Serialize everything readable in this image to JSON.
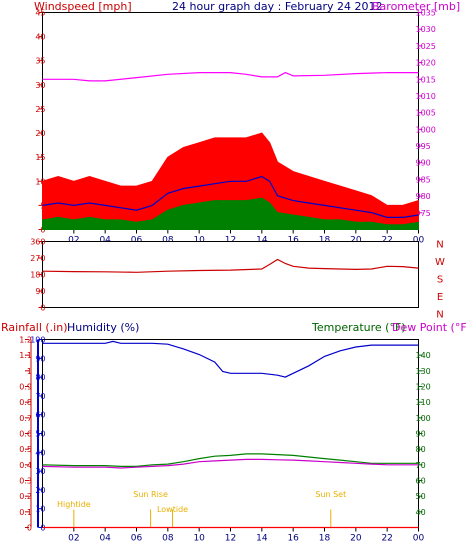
{
  "chart_data": [
    {
      "type": "line",
      "panel": "wind-barometer",
      "title": "24 hour graph day : February 24 2012",
      "ylabel_left": "Windspeed [mph]",
      "ylabel_right": "Barometer [mb]",
      "xlim": [
        0,
        24
      ],
      "x_ticks": [
        "02",
        "04",
        "06",
        "08",
        "10",
        "12",
        "14",
        "16",
        "18",
        "20",
        "22",
        "00"
      ],
      "ylim_left": [
        0,
        45
      ],
      "yticks_left": [
        "0",
        "5",
        "10",
        "15",
        "20",
        "25",
        "30",
        "35",
        "40",
        "45"
      ],
      "ylim_right": [
        970,
        1035
      ],
      "yticks_right": [
        "975",
        "980",
        "985",
        "990",
        "995",
        "1000",
        "1005",
        "1010",
        "1015",
        "1020",
        "1025",
        "1030",
        "1035"
      ],
      "grid": false,
      "series": [
        {
          "color": "#ff0000",
          "fill": true,
          "x": [
            0,
            1,
            2,
            3,
            4,
            5,
            6,
            7,
            8,
            9,
            10,
            11,
            12,
            13,
            14,
            14.5,
            15,
            16,
            17,
            18,
            19,
            20,
            21,
            22,
            23,
            24
          ],
          "values": [
            10,
            11,
            10,
            11,
            10,
            9,
            9,
            10,
            15,
            17,
            18,
            19,
            19,
            19,
            20,
            18,
            14,
            12,
            11,
            10,
            9,
            8,
            7,
            5,
            5,
            6
          ]
        },
        {
          "color": "#0000cc",
          "x": [
            0,
            1,
            2,
            3,
            4,
            5,
            6,
            7,
            8,
            9,
            10,
            11,
            12,
            13,
            14,
            14.5,
            15,
            16,
            17,
            18,
            19,
            20,
            21,
            22,
            23,
            24
          ],
          "values": [
            5,
            5.5,
            5,
            5.5,
            5,
            4.5,
            4,
            5,
            7.5,
            8.5,
            9,
            9.5,
            10,
            10,
            11,
            10,
            7,
            6,
            5.5,
            5,
            4.5,
            4,
            3.5,
            2.5,
            2.5,
            3
          ]
        },
        {
          "color": "#008000",
          "fill": true,
          "x": [
            0,
            1,
            2,
            3,
            4,
            5,
            6,
            7,
            8,
            9,
            10,
            11,
            12,
            13,
            14,
            14.5,
            15,
            16,
            17,
            18,
            19,
            20,
            21,
            22,
            23,
            24
          ],
          "values": [
            2,
            2.5,
            2,
            2.5,
            2,
            2,
            1.5,
            2,
            4,
            5,
            5.5,
            6,
            6,
            6,
            6.5,
            5.5,
            3.5,
            3,
            2.5,
            2,
            2,
            1.5,
            1.5,
            1,
            1,
            1.5
          ]
        },
        {
          "color": "#ff00ff",
          "axis": "right",
          "x": [
            0,
            2,
            3,
            4,
            6,
            8,
            10,
            12,
            13,
            14,
            15,
            15.5,
            16,
            18,
            20,
            22,
            24
          ],
          "values": [
            1015,
            1015,
            1014.5,
            1014.5,
            1015.5,
            1016.5,
            1017,
            1017,
            1016.5,
            1015.7,
            1015.7,
            1017,
            1016,
            1016.2,
            1016.7,
            1017,
            1017
          ]
        }
      ]
    },
    {
      "type": "line",
      "panel": "wind-direction",
      "xlim": [
        0,
        24
      ],
      "ylim": [
        0,
        360
      ],
      "yticks": [
        "0",
        "90",
        "180",
        "270",
        "360"
      ],
      "compass": [
        "N",
        "W",
        "S",
        "E",
        "N"
      ],
      "series": [
        {
          "color": "#cc0000",
          "x": [
            0,
            2,
            4,
            6,
            8,
            10,
            12,
            14,
            14.5,
            15,
            15.5,
            16,
            17,
            18,
            19,
            20,
            21,
            22,
            23,
            24
          ],
          "values": [
            198,
            196,
            195,
            192,
            198,
            202,
            204,
            210,
            235,
            262,
            240,
            225,
            215,
            212,
            210,
            208,
            210,
            225,
            223,
            215
          ]
        }
      ]
    },
    {
      "type": "line",
      "panel": "rain-humidity-temperature",
      "ylabel_rain": "Rainfall (.in)",
      "ylabel_humidity": "Humidity (%)",
      "ylabel_temperature": "Temperature (°F)",
      "ylabel_dewpoint": "Dew Point (°F)",
      "xlim": [
        0,
        24
      ],
      "x_ticks": [
        "02",
        "04",
        "06",
        "08",
        "10",
        "12",
        "14",
        "16",
        "18",
        "20",
        "22",
        "00"
      ],
      "ylim_rain": [
        0,
        1.2
      ],
      "yticks_rain": [
        "0",
        "0.1",
        "0.2",
        "0.3",
        "0.4",
        "0.5",
        "0.6",
        "0.7",
        "0.8",
        "0.9",
        "1",
        "1.1",
        "1.2"
      ],
      "ylim_humidity": [
        0,
        100
      ],
      "yticks_humidity": [
        "0",
        "10",
        "20",
        "30",
        "40",
        "50",
        "60",
        "70",
        "80",
        "90",
        "100"
      ],
      "ylim_temperature": [
        30,
        150
      ],
      "yticks_temperature": [
        "40",
        "50",
        "60",
        "70",
        "80",
        "90",
        "100",
        "110",
        "120",
        "130",
        "140"
      ],
      "annotations": [
        {
          "label": "Hightide",
          "x": 2.0
        },
        {
          "label": "Sun Rise",
          "x": 6.9
        },
        {
          "label": "Lowtide",
          "x": 8.3
        },
        {
          "label": "Sun Set",
          "x": 18.4
        }
      ],
      "series": [
        {
          "color": "#0000cc",
          "axis": "humidity",
          "x": [
            0,
            3,
            4,
            4.5,
            5,
            6,
            7,
            8,
            9,
            10,
            11,
            11.5,
            12,
            13,
            14,
            15,
            15.5,
            16,
            17,
            18,
            19,
            20,
            21,
            22,
            24
          ],
          "values": [
            98,
            98,
            98,
            99,
            98,
            98,
            98,
            97.5,
            95,
            92,
            88,
            83,
            82,
            82,
            82,
            81,
            80,
            82,
            86,
            91,
            94,
            96,
            97,
            97,
            97
          ]
        },
        {
          "color": "#008000",
          "axis": "temperature",
          "x": [
            0,
            2,
            4,
            5,
            6,
            7,
            8,
            9,
            10,
            11,
            12,
            13,
            14,
            15,
            16,
            17,
            18,
            19,
            20,
            21,
            22,
            23,
            24
          ],
          "values": [
            70,
            69.5,
            69.5,
            69,
            69,
            70,
            70.5,
            72,
            74,
            75.5,
            76,
            77,
            77,
            76.5,
            76,
            75,
            74,
            73,
            72,
            71,
            71,
            71,
            71
          ]
        },
        {
          "color": "#cc00cc",
          "axis": "temperature",
          "x": [
            0,
            2,
            4,
            5,
            6,
            7,
            8,
            9,
            10,
            11,
            12,
            13,
            14,
            15,
            16,
            17,
            18,
            19,
            20,
            21,
            22,
            23,
            24
          ],
          "values": [
            69,
            68.5,
            68.5,
            68,
            68.5,
            69,
            69.5,
            70.5,
            72,
            72.5,
            73,
            73.5,
            73.5,
            73.2,
            73,
            72.5,
            72,
            71.5,
            71,
            70.5,
            70,
            70,
            70
          ]
        },
        {
          "color": "#ff0000",
          "axis": "rain",
          "x": [
            0,
            24
          ],
          "values": [
            0,
            0
          ]
        }
      ]
    }
  ]
}
